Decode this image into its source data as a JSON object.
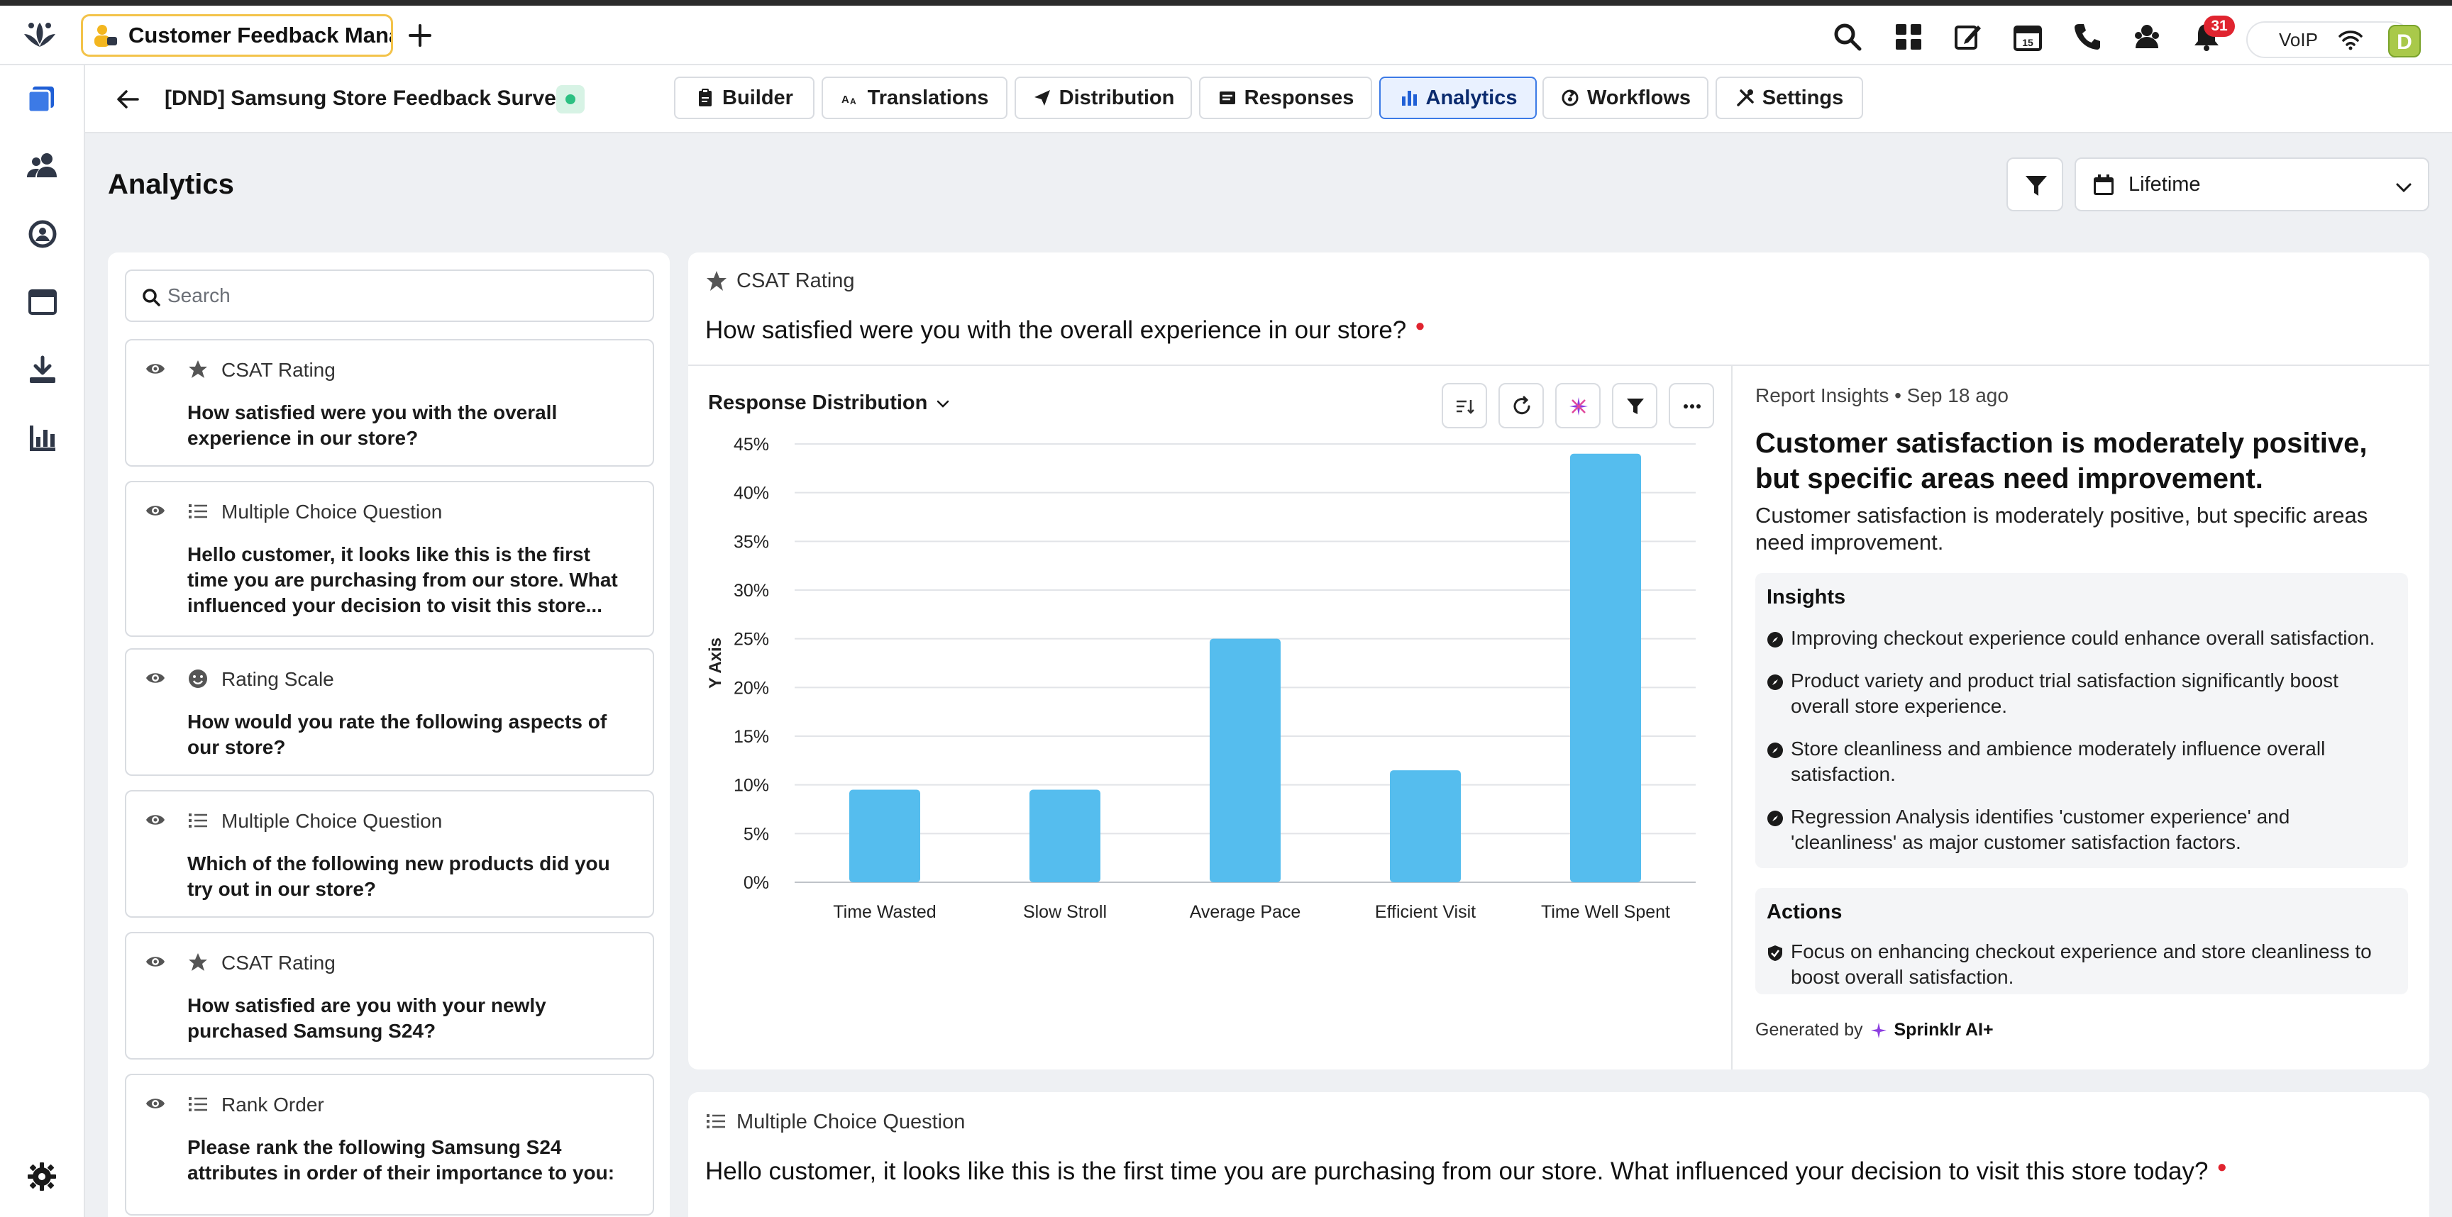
{
  "app_tab": {
    "title": "Customer Feedback Manager"
  },
  "topbar": {
    "notification_count": "31",
    "voip_label": "VoIP",
    "avatar_initial": "D"
  },
  "survey": {
    "title": "[DND] Samsung Store Feedback Survey"
  },
  "nav_tabs": [
    {
      "label": "Builder"
    },
    {
      "label": "Translations"
    },
    {
      "label": "Distribution"
    },
    {
      "label": "Responses"
    },
    {
      "label": "Analytics"
    },
    {
      "label": "Workflows"
    },
    {
      "label": "Settings"
    }
  ],
  "page": {
    "title": "Analytics",
    "date_range": "Lifetime"
  },
  "search": {
    "placeholder": "Search"
  },
  "questions": [
    {
      "type": "CSAT Rating",
      "text": "How satisfied were you with the overall experience in our store?"
    },
    {
      "type": "Multiple Choice Question",
      "text": "Hello customer, it looks like this is the first time you are purchasing from our store. What influenced your decision to visit this store..."
    },
    {
      "type": "Rating Scale",
      "text": "How would you rate the following aspects of our store?"
    },
    {
      "type": "Multiple Choice Question",
      "text": "Which of the following new products did you try out in our store?"
    },
    {
      "type": "CSAT Rating",
      "text": "How satisfied are you with your newly purchased Samsung S24?"
    },
    {
      "type": "Rank Order",
      "text": "Please rank the following Samsung S24 attributes in order of their importance to you:"
    }
  ],
  "main_card": {
    "type": "CSAT Rating",
    "question": "How satisfied were you with the overall experience in our store?",
    "dist_label": "Response Distribution"
  },
  "chart_data": {
    "type": "bar",
    "categories": [
      "Time Wasted",
      "Slow Stroll",
      "Average Pace",
      "Efficient Visit",
      "Time Well Spent"
    ],
    "values": [
      9.5,
      9.5,
      25,
      11.5,
      44
    ],
    "ylabel": "Y Axis",
    "xlabel": "",
    "ylim": [
      0,
      45
    ],
    "yticks": [
      0,
      5,
      10,
      15,
      20,
      25,
      30,
      35,
      40,
      45
    ],
    "ytick_labels": [
      "0%",
      "5%",
      "10%",
      "15%",
      "20%",
      "25%",
      "30%",
      "35%",
      "40%",
      "45%"
    ],
    "grid": true,
    "bar_color": "#55bdee"
  },
  "report": {
    "header": "Report Insights • Sep 18 ago",
    "title": "Customer satisfaction is moderately positive, but specific areas need improvement.",
    "subtitle": "Customer satisfaction is moderately positive, but specific areas need improvement.",
    "insights_title": "Insights",
    "insights": [
      "Improving checkout experience could enhance overall satisfaction.",
      "Product variety and product trial satisfaction significantly boost overall store experience.",
      "Store cleanliness and ambience moderately influence overall satisfaction.",
      "Regression Analysis identifies 'customer experience' and 'cleanliness' as major customer satisfaction factors."
    ],
    "actions_title": "Actions",
    "actions": [
      "Focus on enhancing checkout experience and store cleanliness to boost overall satisfaction."
    ],
    "generated_by": "Generated by",
    "brand": "Sprinklr AI+"
  },
  "second_card": {
    "type": "Multiple Choice Question",
    "question": "Hello customer, it looks like this is the first time you are purchasing from our store. What influenced your decision to visit this store today?"
  },
  "colors": {
    "accent": "#3c7ae6",
    "bar": "#55bdee",
    "required": "#e0242f",
    "sidebar_icon": "#2f3747"
  }
}
